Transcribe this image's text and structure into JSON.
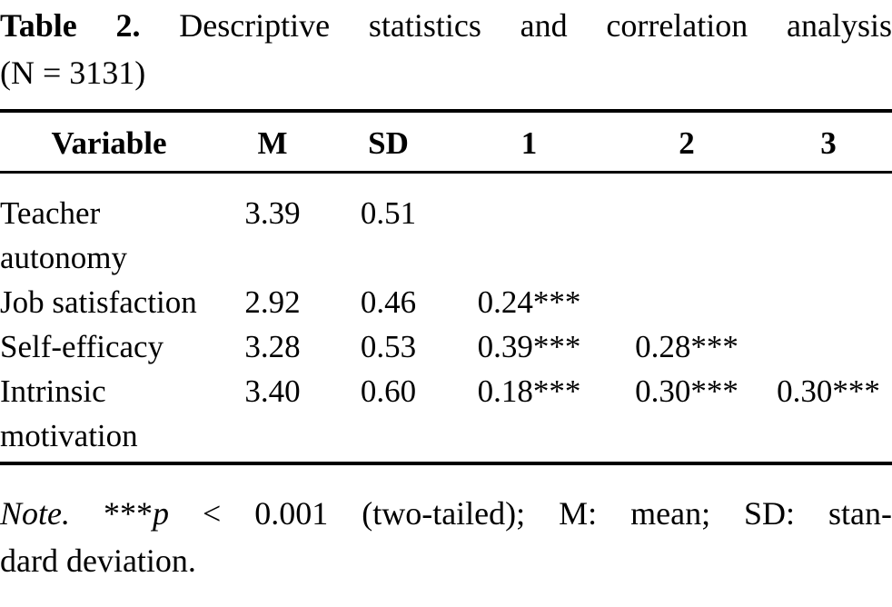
{
  "colors": {
    "text": "#000000",
    "background": "#ffffff",
    "rule": "#000000"
  },
  "caption": {
    "label": "Table 2.",
    "title": "Descriptive statistics and correlation analysis",
    "sample": "(N = 3131)"
  },
  "table": {
    "columns": [
      "Variable",
      "M",
      "SD",
      "1",
      "2",
      "3"
    ],
    "rows": [
      {
        "variable": "Teacher autonomy",
        "m": "3.39",
        "sd": "0.51",
        "r1": "",
        "r2": "",
        "r3": ""
      },
      {
        "variable": "Job satisfaction",
        "m": "2.92",
        "sd": "0.46",
        "r1": "0.24***",
        "r2": "",
        "r3": ""
      },
      {
        "variable": "Self-efficacy",
        "m": "3.28",
        "sd": "0.53",
        "r1": "0.39***",
        "r2": "0.28***",
        "r3": ""
      },
      {
        "variable": "Intrinsic motivation",
        "m": "3.40",
        "sd": "0.60",
        "r1": "0.18***",
        "r2": "0.30***",
        "r3": "0.30***"
      }
    ]
  },
  "note": {
    "label": "Note.",
    "stars": "***",
    "p": "p",
    "line1_rest": "< 0.001 (two-tailed); M: mean; SD: stan-",
    "line2": "dard deviation."
  }
}
